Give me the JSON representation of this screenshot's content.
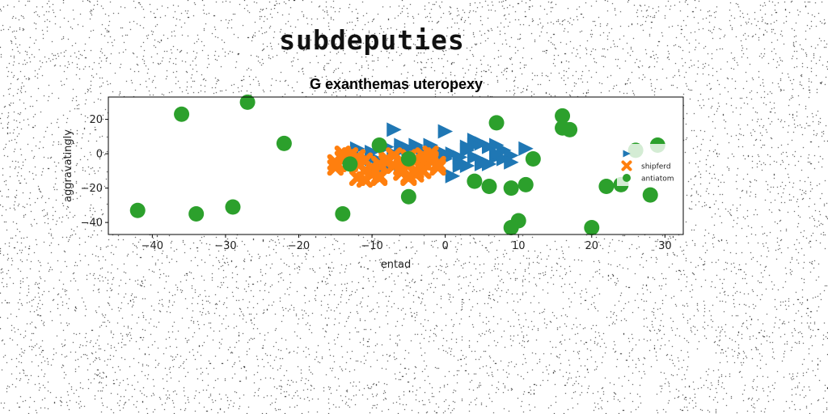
{
  "page": {
    "title": "subdeputies"
  },
  "chart_data": {
    "type": "scatter",
    "title": "G exanthemas uteropexy",
    "xlabel": "entad",
    "ylabel": "aggravatingly",
    "xlim": [
      -46,
      32.5
    ],
    "ylim": [
      -47,
      33
    ],
    "xticks": [
      -40,
      -30,
      -20,
      -10,
      0,
      10,
      20,
      30
    ],
    "yticks": [
      -40,
      -20,
      0,
      20
    ],
    "grid": false,
    "legend_position": "right",
    "series": [
      {
        "name": "",
        "marker": "triangle-right",
        "color": "#1f77b4",
        "x": [
          -7,
          -6,
          0,
          -12,
          -10,
          -8,
          -7,
          -6,
          -4,
          -3,
          -2,
          1,
          2,
          3,
          4,
          5,
          6,
          7,
          8,
          9,
          11,
          -9,
          -6,
          -4,
          -2,
          0,
          2,
          3,
          4,
          5,
          6,
          7,
          8,
          -10,
          -8,
          -6,
          -3,
          0,
          2,
          5,
          8,
          -5,
          -1,
          4,
          7,
          9,
          3,
          -12,
          -2,
          1
        ],
        "y": [
          14,
          2,
          13,
          -1,
          1,
          4,
          0,
          5,
          5,
          2,
          5,
          0,
          -2,
          2,
          8,
          6,
          4,
          5,
          2,
          -1,
          3,
          -4,
          -5,
          -3,
          3,
          0,
          -5,
          -7,
          -2,
          -4,
          -6,
          -2,
          -3,
          -3,
          -7,
          -8,
          -5,
          -3,
          -7,
          -6,
          -3,
          3,
          2,
          5,
          0,
          -5,
          4,
          3,
          -5,
          -13
        ],
        "legend_x": 26,
        "legend_y": 0
      },
      {
        "name": "shipferd",
        "marker": "x-filled",
        "color": "#ff7f0e",
        "x": [
          -15,
          -14,
          -13,
          -12,
          -11,
          -10,
          -9,
          -8,
          -7,
          -6,
          -5,
          -4,
          -3,
          -2,
          -1,
          -14,
          -13,
          -12,
          -11,
          -10,
          -9,
          -8,
          -7,
          -6,
          -5,
          -4,
          -3,
          -2,
          -1,
          -15,
          -12,
          -11,
          -10,
          -5,
          -4,
          -3,
          -13,
          -9,
          -6,
          -2
        ],
        "y": [
          -5,
          -3,
          -6,
          -5,
          -4,
          -8,
          -6,
          -3,
          -1,
          -4,
          -2,
          -3,
          -5,
          -4,
          -6,
          0,
          -1,
          -2,
          -10,
          -12,
          -13,
          -5,
          -7,
          -11,
          -13,
          -12,
          -10,
          -3,
          -8,
          -8,
          -14,
          -15,
          -12,
          -14,
          -10,
          -1,
          -1,
          -14,
          -8,
          0
        ],
        "legend_x": 25,
        "legend_y": -7
      },
      {
        "name": "antiatom",
        "marker": "circle",
        "color": "#2ca02c",
        "x": [
          -42,
          -36,
          -34,
          -29,
          -27,
          -22,
          -14,
          -13,
          -9,
          -5,
          -5,
          4,
          6,
          7,
          9,
          10,
          11,
          12,
          16,
          16,
          17,
          20,
          22,
          24,
          26,
          28,
          29,
          9
        ],
        "y": [
          -33,
          23,
          -35,
          -31,
          30,
          6,
          -35,
          -6,
          5,
          -3,
          -25,
          -16,
          -19,
          18,
          -20,
          -39,
          -18,
          -3,
          22,
          15,
          14,
          -43,
          -19,
          -18,
          2,
          -24,
          5,
          -43
        ],
        "legend_x": 26,
        "legend_y": -14
      }
    ]
  }
}
